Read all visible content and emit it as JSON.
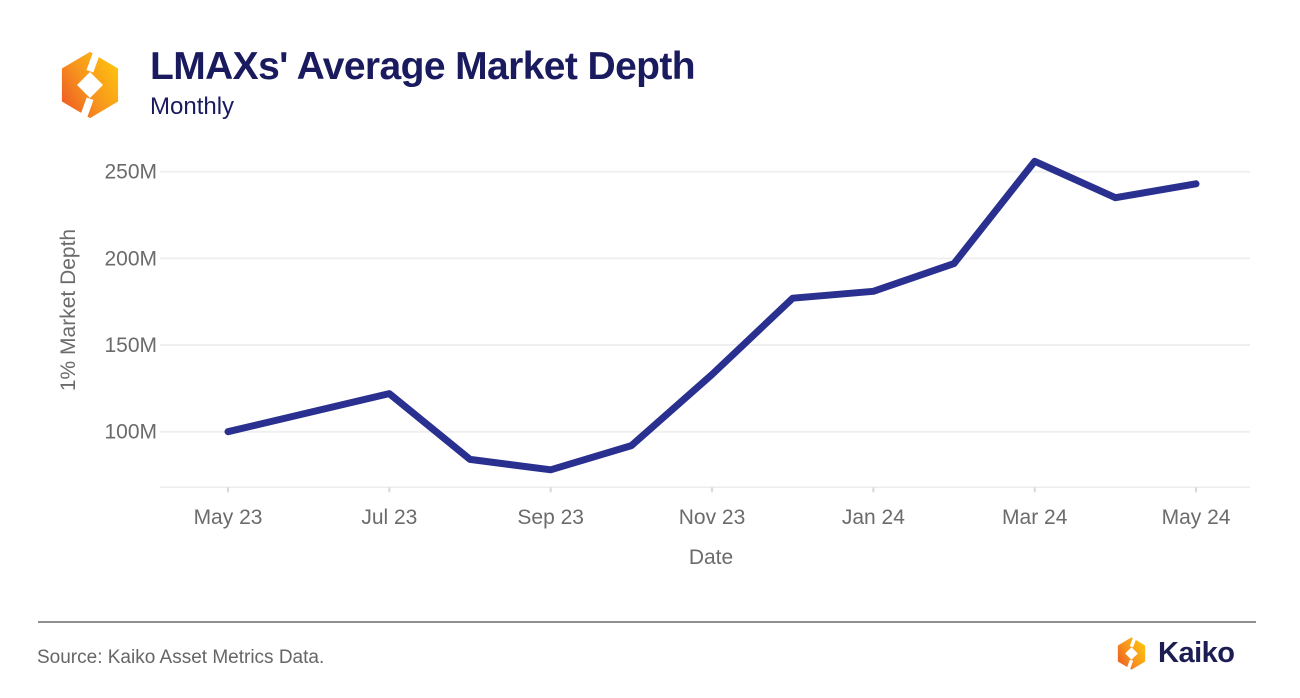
{
  "header": {
    "title": "LMAXs' Average Market Depth",
    "subtitle": "Monthly",
    "logo_icon": "kaiko-hexagon-icon"
  },
  "chart_data": {
    "type": "line",
    "title": "LMAXs' Average Market Depth",
    "subtitle": "Monthly",
    "xlabel": "Date",
    "ylabel": "1% Market Depth",
    "x": [
      "May 23",
      "Jun 23",
      "Jul 23",
      "Aug 23",
      "Sep 23",
      "Oct 23",
      "Nov 23",
      "Dec 23",
      "Jan 24",
      "Feb 24",
      "Mar 24",
      "Apr 24",
      "May 24"
    ],
    "values_millions": [
      100,
      111,
      122,
      84,
      78,
      92,
      133,
      177,
      181,
      197,
      256,
      235,
      243
    ],
    "yticks_millions": [
      250,
      200,
      150,
      100
    ],
    "ytick_labels": [
      "250M",
      "200M",
      "150M",
      "100M"
    ],
    "xtick_labels": [
      "May 23",
      "Jul 23",
      "Sep 23",
      "Nov 23",
      "Jan 24",
      "Mar 24",
      "May 24"
    ],
    "ylim_millions": [
      68,
      262
    ],
    "grid": "horizontal",
    "legend": "none",
    "line_color": "#2a3090"
  },
  "footer": {
    "source": "Source: Kaiko Asset Metrics Data.",
    "brand_wordmark": "Kaiko",
    "logo_icon": "kaiko-hexagon-icon"
  },
  "colors": {
    "title_navy": "#1a1a5e",
    "brand_navy": "#1b1d53",
    "axis_text": "#6b6b6b",
    "gridline": "#efefef",
    "axis_line": "#ececec",
    "tick_mark": "#d9d9d9",
    "series_line": "#2a3090",
    "divider": "#8f8f8f",
    "source_text": "#666666",
    "logo_yellow": "#ffc40e",
    "logo_orange": "#f7941d",
    "logo_deep_orange": "#ee5a24"
  }
}
